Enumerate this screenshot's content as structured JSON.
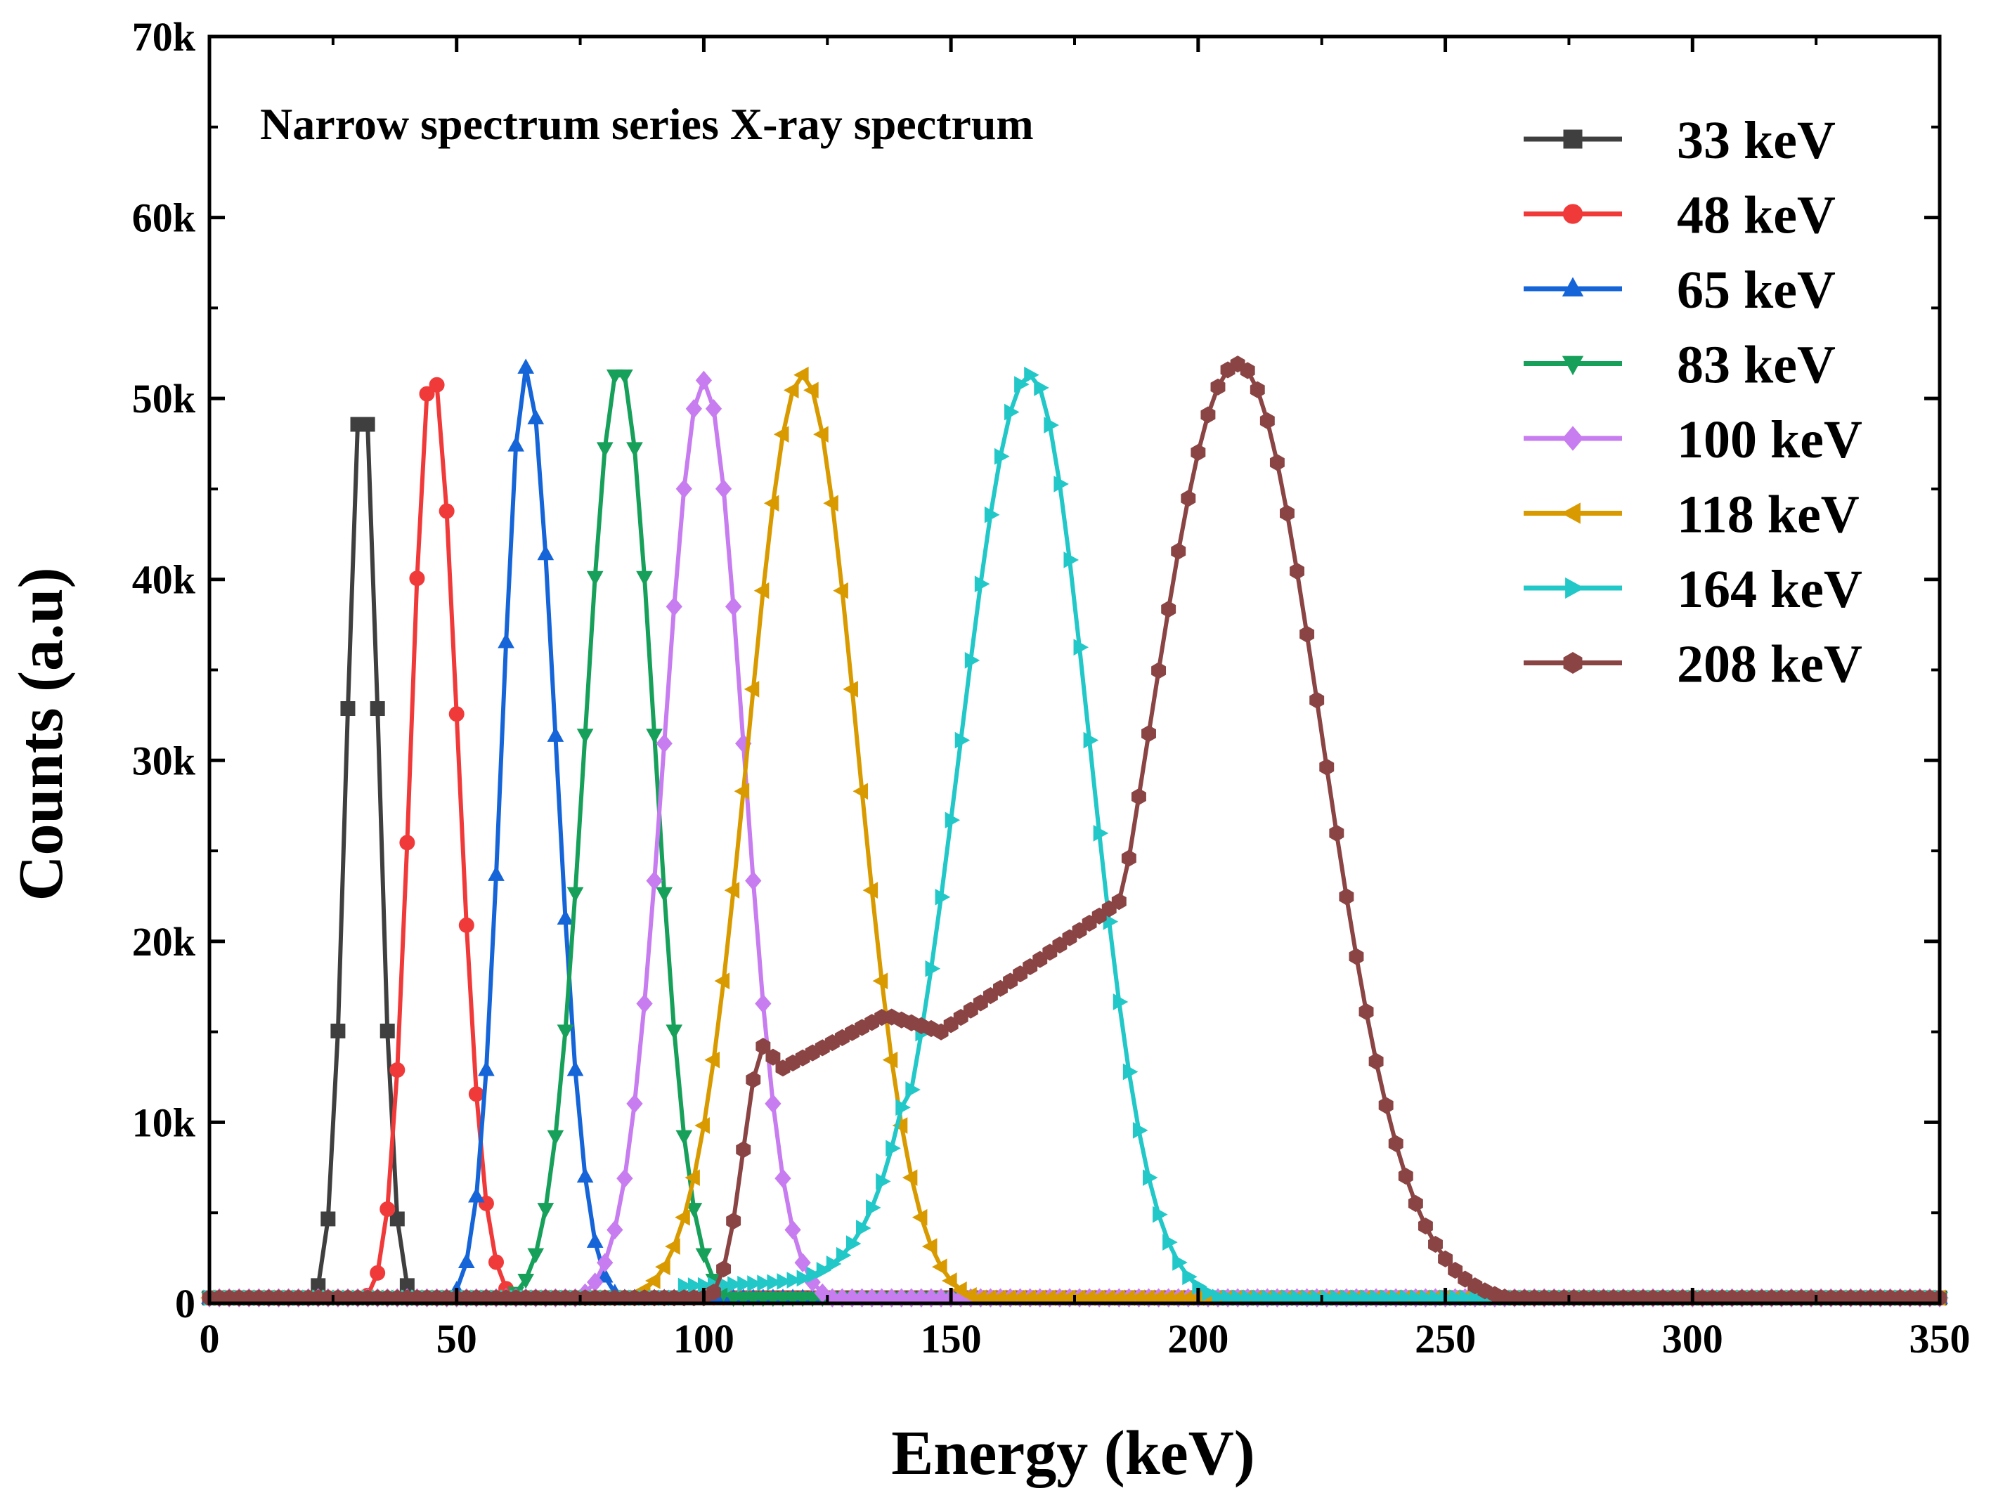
{
  "chart_data": {
    "type": "line",
    "title": "Narrow spectrum series X-ray spectrum",
    "xlabel": "Energy (keV)",
    "ylabel": "Counts (a.u)",
    "xlim": [
      0,
      350
    ],
    "ylim": [
      0,
      70000
    ],
    "x_ticks": [
      0,
      50,
      100,
      150,
      200,
      250,
      300,
      350
    ],
    "x_tick_labels": [
      "0",
      "50",
      "100",
      "150",
      "200",
      "250",
      "300",
      "350"
    ],
    "y_ticks": [
      0,
      10000,
      20000,
      30000,
      40000,
      50000,
      60000,
      70000
    ],
    "y_tick_labels": [
      "0",
      "10k",
      "20k",
      "30k",
      "40k",
      "50k",
      "60k",
      "70k"
    ],
    "grid": false,
    "legend_position": "top-right",
    "series": [
      {
        "name": "33 keV",
        "color": "#3f3f3f",
        "marker": "square",
        "peak": {
          "x": 31,
          "y": 51000
        },
        "width_left": 3.2,
        "width_right": 3.2
      },
      {
        "name": "48 keV",
        "color": "#f03a3a",
        "marker": "circle",
        "peak": {
          "x": 45,
          "y": 51700
        },
        "width_left": 4.2,
        "width_right": 5.2
      },
      {
        "name": "65 keV",
        "color": "#1565d8",
        "marker": "triangle-up",
        "peak": {
          "x": 64,
          "y": 51700
        },
        "width_left": 4.8,
        "width_right": 6
      },
      {
        "name": "83 keV",
        "color": "#17a05a",
        "marker": "triangle-down",
        "peak": {
          "x": 83,
          "y": 51800
        },
        "width_left": 7,
        "width_right": 7
      },
      {
        "name": "100 keV",
        "color": "#c77cf0",
        "marker": "diamond",
        "peak": {
          "x": 100,
          "y": 51000
        },
        "width_left": 8,
        "width_right": 8
      },
      {
        "name": "118 keV",
        "color": "#d99a00",
        "marker": "triangle-left",
        "peak": {
          "x": 120,
          "y": 51300
        },
        "width_left": 11,
        "width_right": 11
      },
      {
        "name": "164 keV",
        "color": "#22c8c8",
        "marker": "triangle-right",
        "peak": {
          "x": 166,
          "y": 51300
        },
        "width_left": 14,
        "width_right": 12
      },
      {
        "name": "208 keV",
        "color": "#8b4444",
        "marker": "hexagon",
        "peak": {
          "x": 208,
          "y": 51900
        },
        "width_left": 18,
        "width_right": 17
      }
    ]
  }
}
